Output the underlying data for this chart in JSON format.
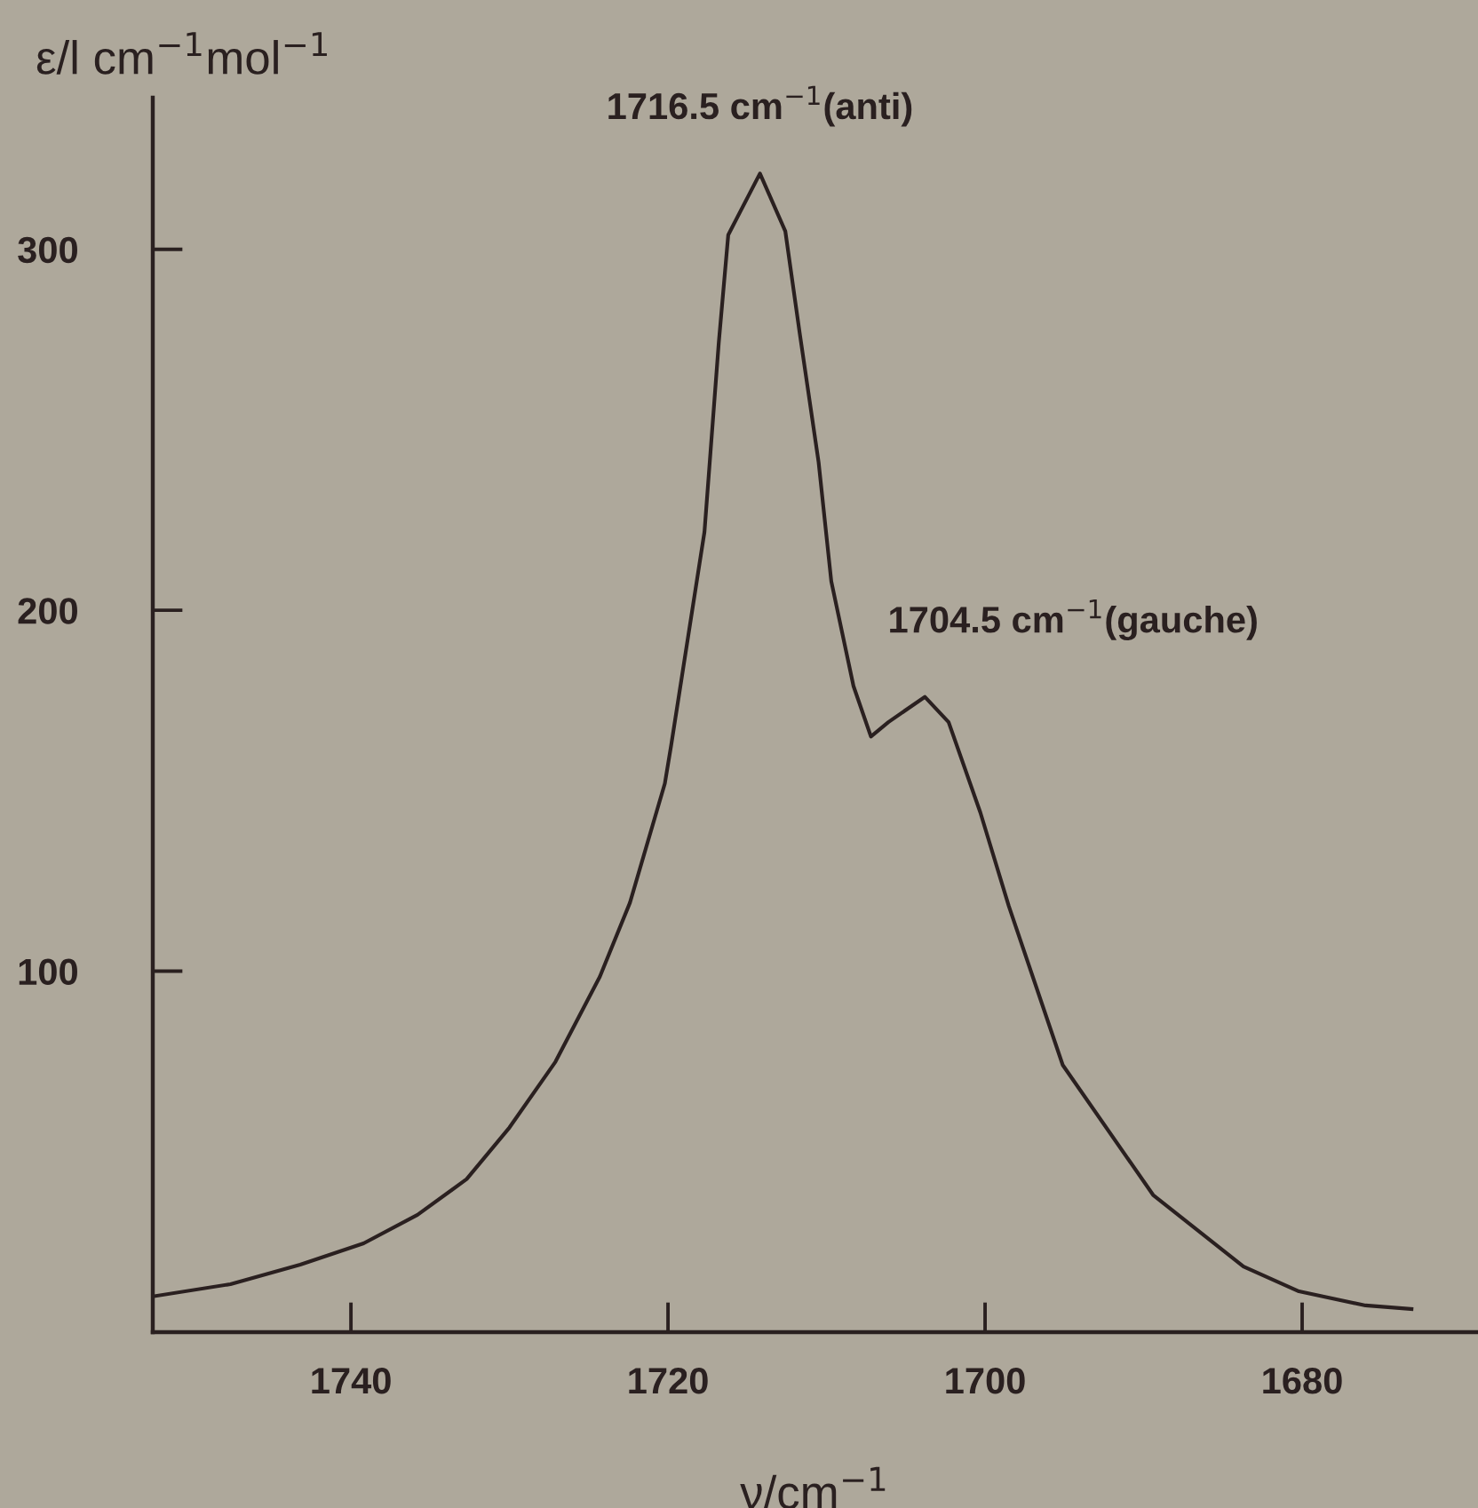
{
  "chart_data": {
    "type": "line",
    "xlabel": "ν/cm$^{−1}$",
    "ylabel": "ε/l cm$^{−1}$mol$^{−1}$",
    "x": [
      1752.5,
      1747.6,
      1743.2,
      1739.2,
      1735.8,
      1732.7,
      1730.0,
      1727.1,
      1724.3,
      1722.4,
      1720.2,
      1719.8,
      1717.7,
      1716.8,
      1716.2,
      1714.2,
      1712.6,
      1711.7,
      1710.5,
      1709.7,
      1708.3,
      1707.2,
      1706.1,
      1703.8,
      1702.3,
      1700.3,
      1698.5,
      1695.1,
      1689.4,
      1683.7,
      1680.2,
      1676.0,
      1673.1
    ],
    "series": [
      {
        "color": "#2a2020",
        "values": [
          9.9,
          13.3,
          18.7,
          24.6,
          32.5,
          42.4,
          56.7,
          74.9,
          98.5,
          119,
          152,
          162.6,
          221.7,
          274,
          304,
          321,
          305,
          277,
          241,
          208,
          179,
          165,
          169,
          176,
          169,
          144,
          118,
          74,
          38,
          18.2,
          11.3,
          7.4,
          6.4
        ]
      }
    ],
    "xlim": [
      1752.5,
      1669
    ],
    "ylim": [
      0,
      342
    ],
    "xticks": [
      1740,
      1720,
      1700,
      1680
    ],
    "yticks": [
      100,
      200,
      300
    ],
    "annotations": [
      {
        "text": "1716.5 cm$^{−1}$(anti)",
        "x": 1714.2,
        "y": 321
      },
      {
        "text": "1704.5 cm$^{−1}$(gauche)",
        "x": 1703.8,
        "y": 176
      }
    ],
    "grid": false,
    "legend": false,
    "marker": "none",
    "line_style": "solid"
  }
}
